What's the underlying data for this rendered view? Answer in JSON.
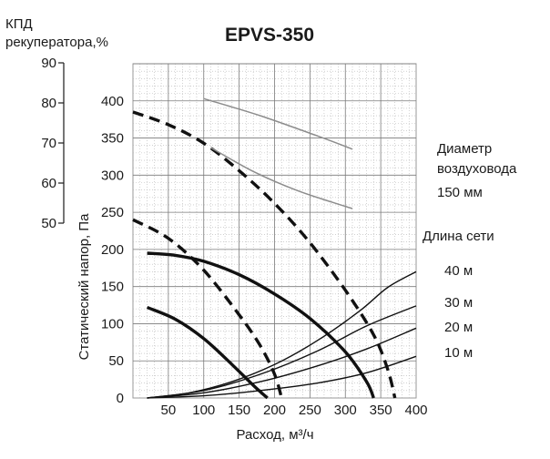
{
  "chart_data": {
    "type": "line",
    "title": "EPVS-350",
    "xlabel": "Расход, м³/ч",
    "ylabel": "Статический напор, Па",
    "xlim": [
      0,
      400
    ],
    "ylim": [
      0,
      450
    ],
    "x_ticks": [
      50,
      100,
      150,
      200,
      250,
      300,
      350,
      400
    ],
    "y_ticks": [
      0,
      50,
      100,
      150,
      200,
      250,
      300,
      350,
      400
    ],
    "grid": true,
    "efficiency_axis": {
      "label_line1": "КПД",
      "label_line2": "рекуператора,%",
      "ticks": [
        90,
        80,
        70,
        60,
        50
      ]
    },
    "annotations": {
      "duct_label_line1": "Диаметр",
      "duct_label_line2": "воздуховода",
      "duct_value": "150 мм",
      "network_label": "Длина сети"
    },
    "series": [
      {
        "style": "fan_solid",
        "color": "#111111",
        "x": [
          20,
          60,
          100,
          150,
          200,
          250,
          300,
          330,
          340
        ],
        "y": [
          195,
          192,
          184,
          166,
          140,
          107,
          62,
          22,
          0
        ]
      },
      {
        "style": "fan_solid",
        "color": "#111111",
        "x": [
          20,
          60,
          100,
          140,
          170,
          190
        ],
        "y": [
          122,
          106,
          80,
          45,
          17,
          0
        ]
      },
      {
        "style": "fan_dashed",
        "color": "#111111",
        "x": [
          0,
          50,
          100,
          150,
          200,
          250,
          300,
          340,
          360,
          370
        ],
        "y": [
          385,
          368,
          343,
          306,
          262,
          209,
          145,
          85,
          38,
          0
        ]
      },
      {
        "style": "fan_dashed",
        "color": "#111111",
        "x": [
          0,
          50,
          100,
          150,
          180,
          200,
          210
        ],
        "y": [
          240,
          215,
          172,
          112,
          70,
          32,
          0
        ]
      },
      {
        "style": "efficiency",
        "color": "#8c8c8c",
        "x": [
          100,
          180,
          260,
          310
        ],
        "y": [
          403,
          380,
          353,
          335
        ]
      },
      {
        "style": "efficiency",
        "color": "#8c8c8c",
        "x": [
          110,
          170,
          230,
          280,
          310
        ],
        "y": [
          337,
          305,
          280,
          264,
          255
        ]
      },
      {
        "name": "40 м",
        "style": "network",
        "color": "#111111",
        "x": [
          20,
          80,
          140,
          200,
          260,
          320,
          360,
          400
        ],
        "y": [
          0,
          7,
          22,
          45,
          77,
          117,
          149,
          170
        ]
      },
      {
        "name": "30 м",
        "style": "network",
        "color": "#111111",
        "x": [
          20,
          100,
          180,
          260,
          330,
          400
        ],
        "y": [
          0,
          10,
          32,
          63,
          97,
          124
        ]
      },
      {
        "name": "20 м",
        "style": "network",
        "color": "#111111",
        "x": [
          20,
          100,
          180,
          260,
          330,
          400
        ],
        "y": [
          0,
          7,
          22,
          43,
          66,
          94
        ]
      },
      {
        "name": "10 м",
        "style": "network",
        "color": "#111111",
        "x": [
          20,
          100,
          180,
          260,
          330,
          400
        ],
        "y": [
          0,
          3,
          10,
          20,
          34,
          56
        ]
      }
    ]
  }
}
